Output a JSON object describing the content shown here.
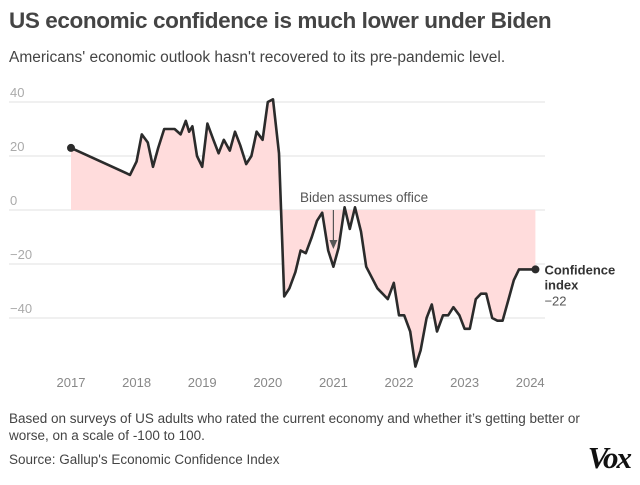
{
  "header": {
    "title": "US economic confidence is much lower under Biden",
    "subtitle": "Americans' economic outlook hasn't recovered to its pre-pandemic level."
  },
  "footer": {
    "note": "Based on surveys of US adults who rated the current economy and whether it’s getting better or worse, on a scale of -100 to 100.",
    "source": "Source: Gallup's Economic Confidence Index",
    "logo": "Vox"
  },
  "colors": {
    "line": "#2b2b2b",
    "area": "#ffdcdc",
    "grid": "#e2e2e2"
  },
  "chart_data": {
    "type": "area",
    "title": "US economic confidence is much lower under Biden",
    "xlabel": "",
    "ylabel": "",
    "xlim": [
      2017,
      2024.1
    ],
    "ylim": [
      -60,
      42
    ],
    "yticks": [
      40,
      20,
      0,
      -20,
      -40
    ],
    "ytick_labels": [
      "40",
      "20",
      "0",
      "−20",
      "−40"
    ],
    "xticks": [
      2017,
      2018,
      2019,
      2020,
      2021,
      2022,
      2023,
      2024
    ],
    "xtick_labels": [
      "2017",
      "2018",
      "2019",
      "2020",
      "2021",
      "2022",
      "2023",
      "2024"
    ],
    "grid": true,
    "series": [
      {
        "name": "Confidence index",
        "x": [
          2017.0,
          2017.9,
          2018.0,
          2018.08,
          2018.17,
          2018.25,
          2018.33,
          2018.42,
          2018.58,
          2018.67,
          2018.75,
          2018.8,
          2018.85,
          2018.92,
          2019.0,
          2019.08,
          2019.17,
          2019.25,
          2019.33,
          2019.42,
          2019.5,
          2019.58,
          2019.67,
          2019.75,
          2019.83,
          2019.92,
          2020.0,
          2020.08,
          2020.17,
          2020.25,
          2020.33,
          2020.42,
          2020.5,
          2020.58,
          2020.67,
          2020.75,
          2020.83,
          2020.92,
          2021.0,
          2021.08,
          2021.17,
          2021.25,
          2021.33,
          2021.42,
          2021.5,
          2021.67,
          2021.83,
          2021.92,
          2022.0,
          2022.08,
          2022.17,
          2022.25,
          2022.33,
          2022.42,
          2022.5,
          2022.58,
          2022.67,
          2022.75,
          2022.83,
          2022.92,
          2023.0,
          2023.08,
          2023.17,
          2023.25,
          2023.33,
          2023.42,
          2023.5,
          2023.58,
          2023.67,
          2023.75,
          2023.83,
          2023.92,
          2024.0,
          2024.08
        ],
        "values": [
          23,
          13,
          18,
          28,
          25,
          16,
          23,
          30,
          30,
          28,
          33,
          29,
          31,
          20,
          16,
          32,
          26,
          21,
          26,
          22,
          29,
          24,
          17,
          20,
          29,
          26,
          40,
          41,
          21,
          -32,
          -29,
          -23,
          -15,
          -16,
          -10,
          -4,
          -1,
          -15,
          -21,
          -14,
          1,
          -7,
          1,
          -8,
          -21,
          -29,
          -33,
          -27,
          -39,
          -39,
          -45,
          -58,
          -52,
          -40,
          -35,
          -45,
          -39,
          -39,
          -36,
          -39,
          -44,
          -44,
          -33,
          -31,
          -31,
          -40,
          -41,
          -41,
          -33,
          -26,
          -22,
          -22,
          -22,
          -22
        ]
      }
    ],
    "annotations": [
      {
        "text": "Biden assumes office",
        "x": 2021.0
      }
    ],
    "end_label": {
      "series": "Confidence index",
      "line1": "Confidence",
      "line2": "index",
      "value": "−22"
    }
  }
}
